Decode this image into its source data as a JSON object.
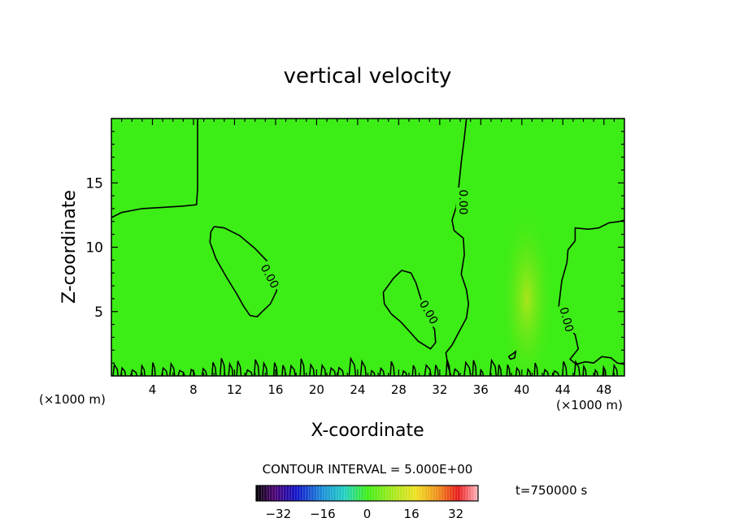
{
  "chart_data": {
    "type": "heatmap",
    "title": "vertical velocity",
    "xlabel": "X-coordinate",
    "ylabel": "Z-coordinate",
    "x_unit_left": "(×1000 m)",
    "x_unit_right": "(×1000 m)",
    "xlim": [
      0,
      50
    ],
    "ylim": [
      0,
      20
    ],
    "x_ticks": [
      4,
      8,
      12,
      16,
      20,
      24,
      28,
      32,
      36,
      40,
      44,
      48
    ],
    "y_ticks": [
      5,
      10,
      15
    ],
    "contour_interval_text": "CONTOUR INTERVAL = 5.000E+00",
    "contour_level_label": "0.00",
    "time_label": "t=750000 s",
    "colorbar": {
      "range": [
        -40,
        40
      ],
      "ticks": [
        -32,
        -16,
        0,
        16,
        32
      ],
      "colormap": "rainbow",
      "background_value": 0
    },
    "highlight_region": {
      "x_center": 40.5,
      "z_center": 6.0,
      "x_halfwidth": 2.7,
      "z_halfwidth": 7.5
    },
    "contours": [
      {
        "name": "upper-left",
        "points": [
          [
            0,
            12.3
          ],
          [
            1,
            12.7
          ],
          [
            3,
            13
          ],
          [
            5,
            13.1
          ],
          [
            7,
            13.2
          ],
          [
            8.3,
            13.3
          ],
          [
            8.4,
            14.5
          ],
          [
            8.4,
            17
          ],
          [
            8.4,
            20
          ]
        ]
      },
      {
        "name": "left-blob",
        "points": [
          [
            10,
            11.6
          ],
          [
            11,
            11.5
          ],
          [
            12.5,
            10.9
          ],
          [
            14,
            9.9
          ],
          [
            15.2,
            8.9
          ],
          [
            16,
            7.7
          ],
          [
            16.1,
            6.6
          ],
          [
            15.5,
            5.6
          ],
          [
            14.7,
            5.0
          ],
          [
            14.2,
            4.6
          ],
          [
            13.5,
            4.7
          ],
          [
            12.9,
            5.4
          ],
          [
            12.2,
            6.4
          ],
          [
            11.2,
            7.7
          ],
          [
            10.2,
            9.1
          ],
          [
            9.6,
            10.4
          ],
          [
            9.7,
            11.2
          ],
          [
            10,
            11.6
          ]
        ]
      },
      {
        "name": "middle-blob",
        "points": [
          [
            26.5,
            6.5
          ],
          [
            27.5,
            7.6
          ],
          [
            28.3,
            8.2
          ],
          [
            29.2,
            8.0
          ],
          [
            29.7,
            7.2
          ],
          [
            30.2,
            5.9
          ],
          [
            30.8,
            4.6
          ],
          [
            31.5,
            3.6
          ],
          [
            31.6,
            2.6
          ],
          [
            31.1,
            2.1
          ],
          [
            29.9,
            2.7
          ],
          [
            29,
            3.5
          ],
          [
            28.2,
            4.2
          ],
          [
            27.3,
            4.8
          ],
          [
            26.6,
            5.6
          ],
          [
            26.5,
            6.5
          ]
        ]
      },
      {
        "name": "center-vertical",
        "points": [
          [
            34.6,
            20
          ],
          [
            34.4,
            18.5
          ],
          [
            34.1,
            16.6
          ],
          [
            33.8,
            14.3
          ],
          [
            33.6,
            13.1
          ],
          [
            33.2,
            12.1
          ],
          [
            33.4,
            11.3
          ],
          [
            34.3,
            10.7
          ],
          [
            34.4,
            9.4
          ],
          [
            34.1,
            7.9
          ],
          [
            34.6,
            6.7
          ],
          [
            34.8,
            5.6
          ],
          [
            34.6,
            4.5
          ],
          [
            34,
            3.6
          ],
          [
            33.2,
            2.4
          ],
          [
            32.6,
            1.8
          ],
          [
            32.8,
            0.8
          ],
          [
            33.1,
            0
          ]
        ]
      },
      {
        "name": "right-vertical",
        "points": [
          [
            50,
            12.1
          ],
          [
            49.5,
            12.0
          ],
          [
            48.5,
            11.9
          ],
          [
            47.5,
            11.5
          ],
          [
            46.5,
            11.4
          ],
          [
            45.2,
            11.5
          ],
          [
            45.2,
            10.5
          ],
          [
            44.5,
            9.8
          ],
          [
            44.4,
            8.8
          ],
          [
            43.9,
            7.4
          ],
          [
            43.6,
            5.4
          ],
          [
            44.1,
            4.2
          ],
          [
            45.2,
            3.2
          ],
          [
            45.5,
            2.1
          ],
          [
            44.7,
            1.3
          ],
          [
            45.3,
            0.9
          ],
          [
            46.2,
            1.1
          ],
          [
            47,
            1.0
          ],
          [
            47.8,
            1.5
          ],
          [
            48.7,
            1.4
          ],
          [
            49.3,
            1.0
          ],
          [
            50,
            0.9
          ]
        ]
      },
      {
        "name": "small-loop",
        "points": [
          [
            38.7,
            1.5
          ],
          [
            39.1,
            1.7
          ],
          [
            39.4,
            1.9
          ],
          [
            39.3,
            1.4
          ],
          [
            38.9,
            1.3
          ],
          [
            38.7,
            1.5
          ]
        ]
      }
    ]
  }
}
